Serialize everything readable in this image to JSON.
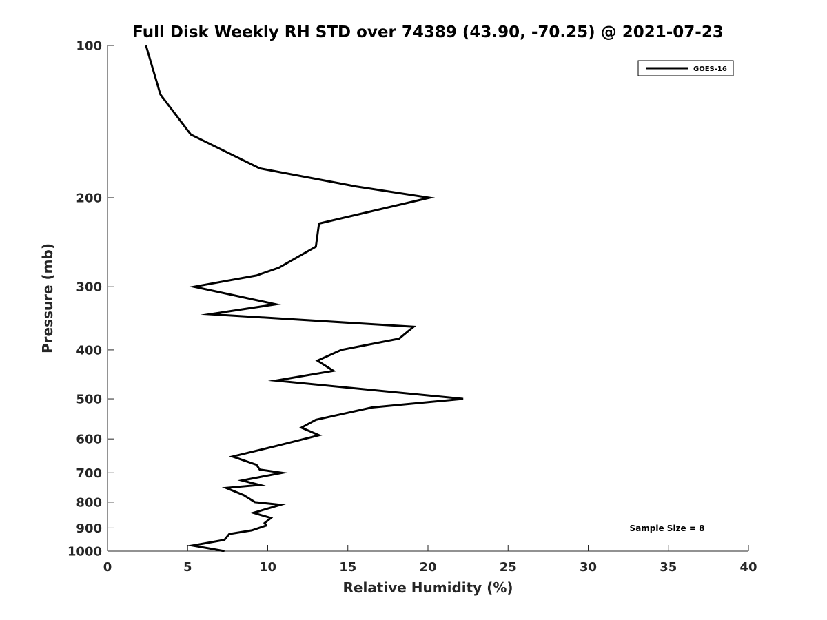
{
  "chart_data": {
    "type": "line",
    "title": "Full Disk Weekly RH STD over 74389 (43.90, -70.25) @ 2021-07-23",
    "xlabel": "Relative Humidity (%)",
    "ylabel": "Pressure (mb)",
    "xlim": [
      0,
      40
    ],
    "ylim": [
      100,
      1000
    ],
    "yscale": "log",
    "yreversed": true,
    "xticks": [
      0,
      5,
      10,
      15,
      20,
      25,
      30,
      35,
      40
    ],
    "yticks": [
      100,
      200,
      300,
      400,
      500,
      600,
      700,
      800,
      900,
      1000
    ],
    "legend_position": "top-right",
    "grid": false,
    "annotation": "Sample Size = 8",
    "series": [
      {
        "name": "GOES-16",
        "color": "#000000",
        "points": [
          [
            2.4,
            100
          ],
          [
            3.3,
            125
          ],
          [
            5.2,
            150
          ],
          [
            9.5,
            175
          ],
          [
            15.5,
            190
          ],
          [
            20.1,
            200
          ],
          [
            13.2,
            225
          ],
          [
            13.0,
            250
          ],
          [
            10.7,
            275
          ],
          [
            9.3,
            285
          ],
          [
            5.4,
            300
          ],
          [
            10.5,
            325
          ],
          [
            6.4,
            340
          ],
          [
            19.1,
            360
          ],
          [
            18.2,
            380
          ],
          [
            14.6,
            400
          ],
          [
            13.1,
            420
          ],
          [
            14.1,
            440
          ],
          [
            10.5,
            460
          ],
          [
            22.2,
            500
          ],
          [
            16.5,
            520
          ],
          [
            13.0,
            550
          ],
          [
            12.1,
            570
          ],
          [
            13.2,
            590
          ],
          [
            10.5,
            620
          ],
          [
            7.8,
            650
          ],
          [
            9.3,
            675
          ],
          [
            9.5,
            690
          ],
          [
            10.9,
            700
          ],
          [
            8.4,
            725
          ],
          [
            9.5,
            740
          ],
          [
            7.4,
            750
          ],
          [
            8.5,
            775
          ],
          [
            9.2,
            800
          ],
          [
            10.8,
            810
          ],
          [
            9.1,
            840
          ],
          [
            10.2,
            860
          ],
          [
            9.8,
            880
          ],
          [
            9.9,
            890
          ],
          [
            9.0,
            910
          ],
          [
            7.6,
            925
          ],
          [
            7.3,
            950
          ],
          [
            5.3,
            975
          ],
          [
            7.3,
            1000
          ]
        ]
      }
    ]
  }
}
